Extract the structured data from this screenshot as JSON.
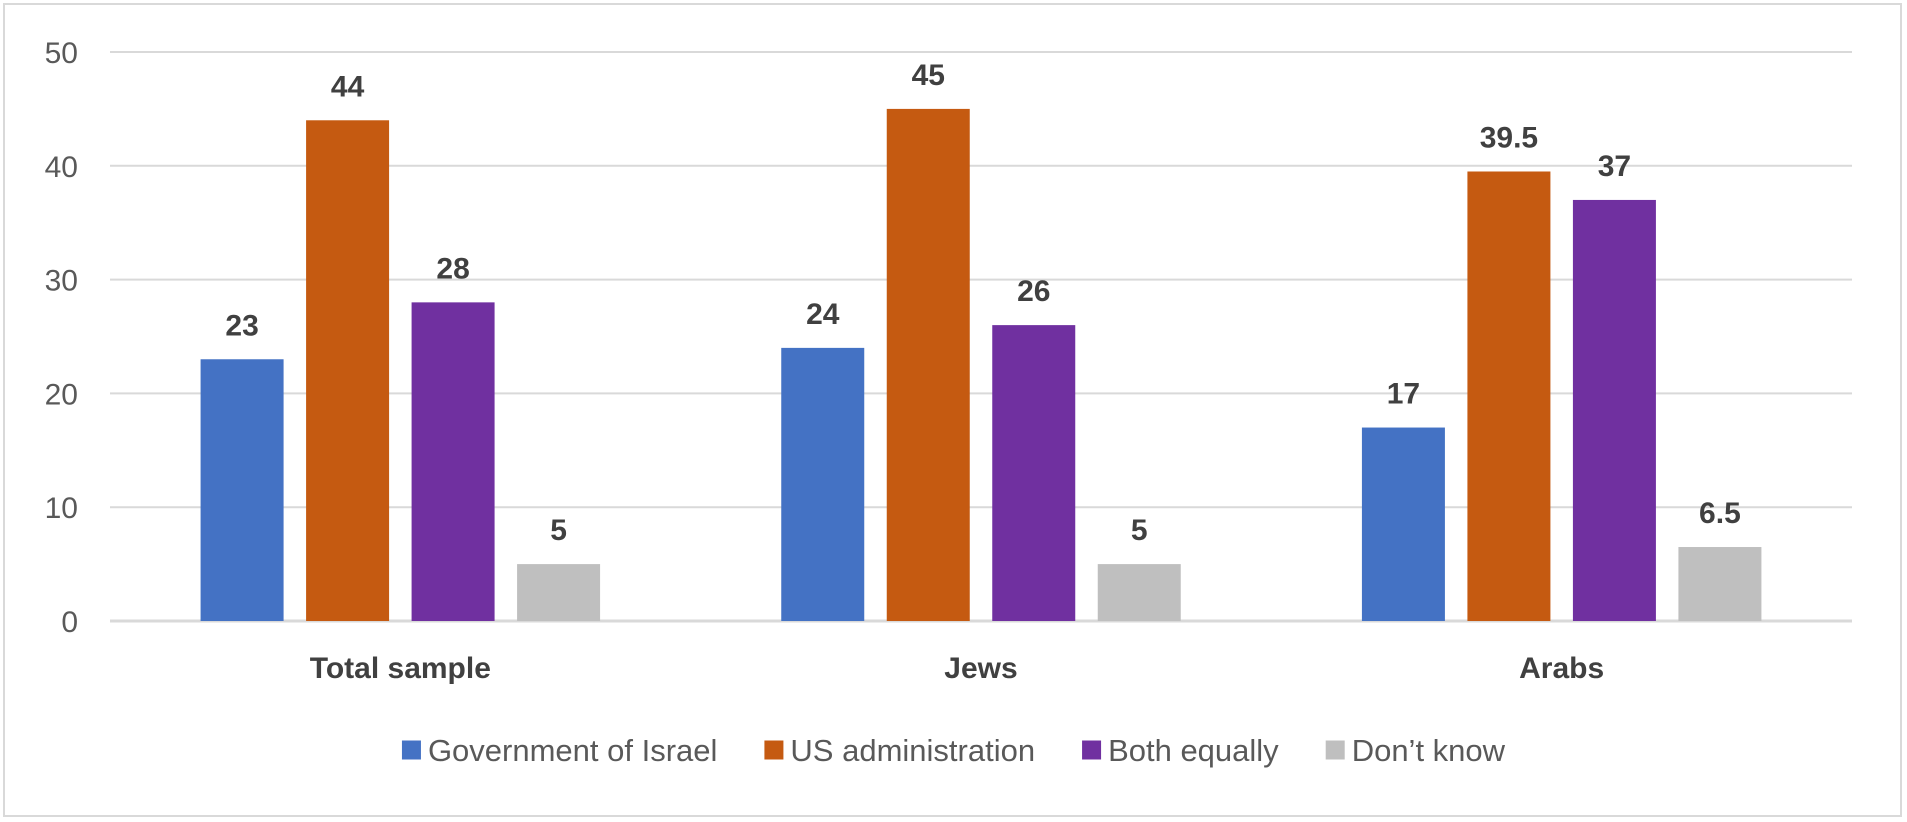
{
  "chart_data": {
    "type": "bar",
    "categories": [
      "Total sample",
      "Jews",
      "Arabs"
    ],
    "series": [
      {
        "name": "Government of Israel",
        "color": "#4472c4",
        "values": [
          23,
          24,
          17
        ],
        "labels": [
          "23",
          "24",
          "17"
        ]
      },
      {
        "name": "US administration",
        "color": "#c55a11",
        "values": [
          44,
          45,
          39.5
        ],
        "labels": [
          "44",
          "45",
          "39.5"
        ]
      },
      {
        "name": "Both equally",
        "color": "#7030a0",
        "values": [
          28,
          26,
          37
        ],
        "labels": [
          "28",
          "26",
          "37"
        ]
      },
      {
        "name": "Don’t know",
        "color": "#bfbfbf",
        "values": [
          5,
          5,
          6.5
        ],
        "labels": [
          "5",
          "5",
          "6.5"
        ]
      }
    ],
    "yticks": [
      "0",
      "10",
      "20",
      "30",
      "40",
      "50"
    ],
    "ylim": [
      0,
      50
    ],
    "grid": true,
    "legend": "bottom-center"
  }
}
